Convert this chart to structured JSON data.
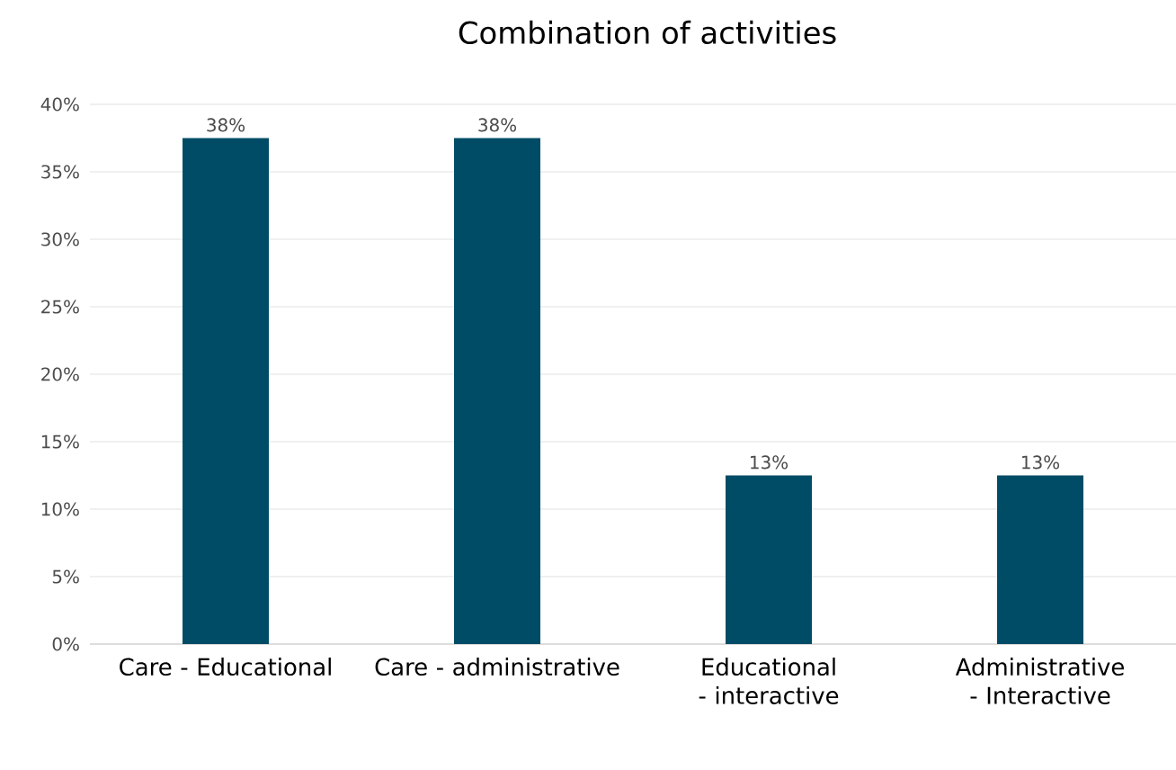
{
  "chart_data": {
    "type": "bar",
    "title": "Combination of activities",
    "categories": [
      "Care - Educational",
      "Care - administrative",
      "Educational - interactive",
      "Administrative - Interactive"
    ],
    "values": [
      37.5,
      37.5,
      12.5,
      12.5
    ],
    "color": "#004c66",
    "value_labels": [
      "38%",
      "38%",
      "13%",
      "13%"
    ],
    "ylim": [
      0,
      40
    ],
    "yticks": [
      {
        "value": 0,
        "label": "0%"
      },
      {
        "value": 5,
        "label": "5%"
      },
      {
        "value": 10,
        "label": "10%"
      },
      {
        "value": 15,
        "label": "15%"
      },
      {
        "value": 20,
        "label": "20%"
      },
      {
        "value": 25,
        "label": "25%"
      },
      {
        "value": 30,
        "label": "30%"
      },
      {
        "value": 35,
        "label": "35%"
      },
      {
        "value": 40,
        "label": "40%"
      }
    ],
    "grid": "y"
  }
}
